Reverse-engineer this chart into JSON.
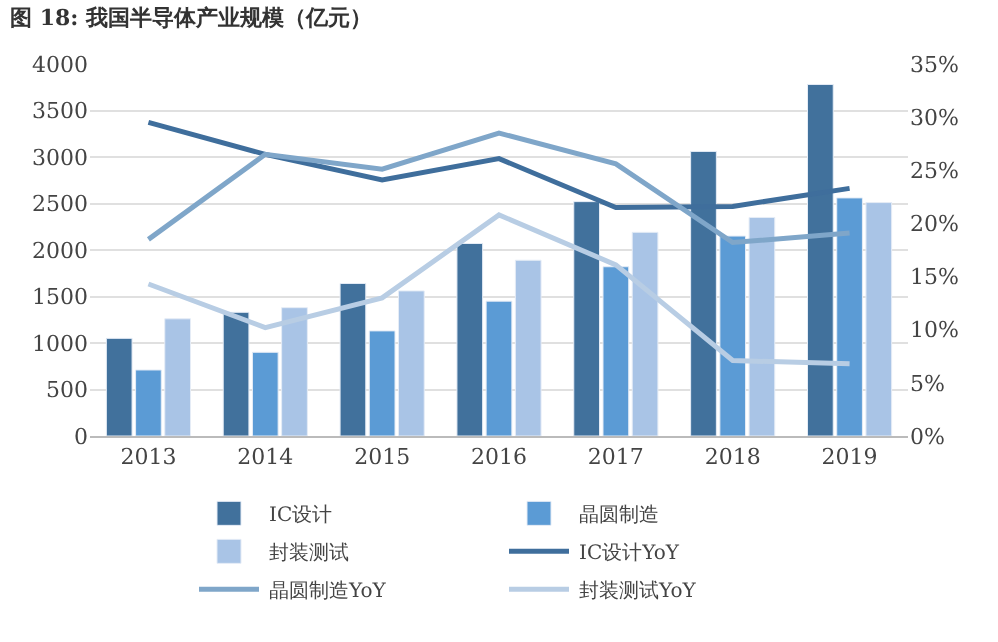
{
  "chart_data": {
    "type": "bar",
    "title": "图 18: 我国半导体产业规模（亿元）",
    "categories": [
      "2013",
      "2014",
      "2015",
      "2016",
      "2017",
      "2018",
      "2019"
    ],
    "series": [
      {
        "name": "IC设计",
        "color": "#41719c",
        "values": [
          1050,
          1330,
          1640,
          2070,
          2520,
          3060,
          3780
        ]
      },
      {
        "name": "晶圆制造",
        "color": "#5b9bd5",
        "values": [
          710,
          900,
          1130,
          1450,
          1820,
          2150,
          2560
        ]
      },
      {
        "name": "封装测试",
        "color": "#a9c4e6",
        "values": [
          1260,
          1380,
          1560,
          1890,
          2190,
          2350,
          2510
        ]
      },
      {
        "name": "IC设计YoY",
        "type": "line",
        "axis": "y2",
        "color": "#3f6e9c",
        "values": [
          29.5,
          26.5,
          24.1,
          26.1,
          21.5,
          21.6,
          23.3
        ]
      },
      {
        "name": "晶圆制造YoY",
        "type": "line",
        "axis": "y2",
        "color": "#7fa6c9",
        "values": [
          18.5,
          26.5,
          25.1,
          28.5,
          25.6,
          18.2,
          19.1
        ]
      },
      {
        "name": "封装测试YoY",
        "type": "line",
        "axis": "y2",
        "color": "#b8cde4",
        "values": [
          14.3,
          10.2,
          13.0,
          20.8,
          16.1,
          7.1,
          6.8
        ]
      }
    ],
    "ylim": [
      0,
      4000
    ],
    "yticks": [
      0,
      500,
      1000,
      1500,
      2000,
      2500,
      3000,
      3500,
      4000
    ],
    "y2lim": [
      0,
      35
    ],
    "y2ticks": [
      {
        "value": 0,
        "label": "0%"
      },
      {
        "value": 5,
        "label": "5%"
      },
      {
        "value": 10,
        "label": "10%"
      },
      {
        "value": 15,
        "label": "15%"
      },
      {
        "value": 20,
        "label": "20%"
      },
      {
        "value": 25,
        "label": "25%"
      },
      {
        "value": 30,
        "label": "30%"
      },
      {
        "value": 35,
        "label": "35%"
      }
    ],
    "grid": "y",
    "legend": "bottom",
    "marker": "none",
    "line_style": "solid"
  }
}
